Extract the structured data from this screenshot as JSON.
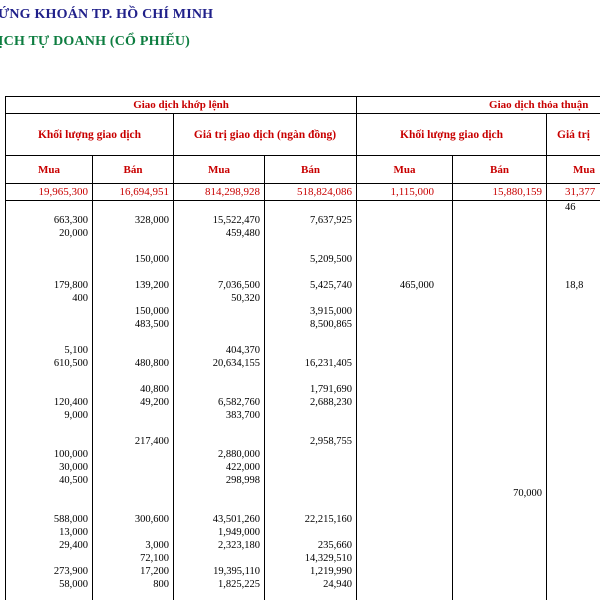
{
  "titles": {
    "line1": "ỨNG KHOÁN TP. HỒ CHÍ MINH",
    "line2": "ỊCH TỰ DOANH (CỔ PHIẾU)"
  },
  "colors": {
    "title_blue": "#20208a",
    "title_green": "#0d7d40",
    "header_red": "#c80000",
    "data_text": "#000000",
    "border": "#000000",
    "background": "#ffffff"
  },
  "table": {
    "group_headers": [
      "Giao dịch khớp lệnh",
      "Giao dịch thỏa thuận"
    ],
    "subgroup_headers": [
      "Khối lượng giao dịch",
      "Giá trị giao dịch (ngàn đồng)",
      "Khối lượng giao dịch",
      "Giá trị"
    ],
    "column_headers": [
      "Mua",
      "Bán",
      "Mua",
      "Bán",
      "Mua",
      "Bán",
      "Mua"
    ],
    "totals": [
      "19,965,300",
      "16,694,951",
      "814,298,928",
      "518,824,086",
      "1,115,000",
      "15,880,159",
      "31,377"
    ],
    "rows": [
      [
        "",
        "",
        "",
        "",
        "",
        "",
        "46"
      ],
      [
        "663,300",
        "328,000",
        "15,522,470",
        "7,637,925",
        "",
        "",
        ""
      ],
      [
        "20,000",
        "",
        "459,480",
        "",
        "",
        "",
        ""
      ],
      [
        "",
        "",
        "",
        "",
        "",
        "",
        ""
      ],
      [
        "",
        "150,000",
        "",
        "5,209,500",
        "",
        "",
        ""
      ],
      [
        "",
        "",
        "",
        "",
        "",
        "",
        ""
      ],
      [
        "179,800",
        "139,200",
        "7,036,500",
        "5,425,740",
        "465,000",
        "",
        "18,8"
      ],
      [
        "400",
        "",
        "50,320",
        "",
        "",
        "",
        ""
      ],
      [
        "",
        "150,000",
        "",
        "3,915,000",
        "",
        "",
        ""
      ],
      [
        "",
        "483,500",
        "",
        "8,500,865",
        "",
        "",
        ""
      ],
      [
        "",
        "",
        "",
        "",
        "",
        "",
        ""
      ],
      [
        "5,100",
        "",
        "404,370",
        "",
        "",
        "",
        ""
      ],
      [
        "610,500",
        "480,800",
        "20,634,155",
        "16,231,405",
        "",
        "",
        ""
      ],
      [
        "",
        "",
        "",
        "",
        "",
        "",
        ""
      ],
      [
        "",
        "40,800",
        "",
        "1,791,690",
        "",
        "",
        ""
      ],
      [
        "120,400",
        "49,200",
        "6,582,760",
        "2,688,230",
        "",
        "",
        ""
      ],
      [
        "9,000",
        "",
        "383,700",
        "",
        "",
        "",
        ""
      ],
      [
        "",
        "",
        "",
        "",
        "",
        "",
        ""
      ],
      [
        "",
        "217,400",
        "",
        "2,958,755",
        "",
        "",
        ""
      ],
      [
        "100,000",
        "",
        "2,880,000",
        "",
        "",
        "",
        ""
      ],
      [
        "30,000",
        "",
        "422,000",
        "",
        "",
        "",
        ""
      ],
      [
        "40,500",
        "",
        "298,998",
        "",
        "",
        "",
        ""
      ],
      [
        "",
        "",
        "",
        "",
        "",
        "70,000",
        ""
      ],
      [
        "",
        "",
        "",
        "",
        "",
        "",
        ""
      ],
      [
        "588,000",
        "300,600",
        "43,501,260",
        "22,215,160",
        "",
        "",
        ""
      ],
      [
        "13,000",
        "",
        "1,949,000",
        "",
        "",
        "",
        ""
      ],
      [
        "29,400",
        "3,000",
        "2,323,180",
        "235,660",
        "",
        "",
        ""
      ],
      [
        "",
        "72,100",
        "",
        "14,329,510",
        "",
        "",
        ""
      ],
      [
        "273,900",
        "17,200",
        "19,395,110",
        "1,219,990",
        "",
        "",
        ""
      ],
      [
        "58,000",
        "800",
        "1,825,225",
        "24,940",
        "",
        "",
        ""
      ],
      [
        "",
        "",
        "",
        "",
        "",
        "",
        ""
      ],
      [
        "",
        "",
        "",
        "",
        "",
        "",
        ""
      ]
    ]
  }
}
